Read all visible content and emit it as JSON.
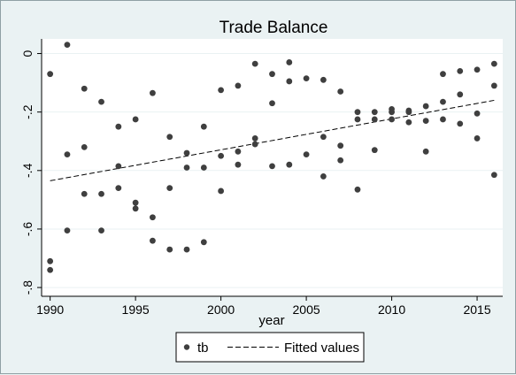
{
  "chart_data": {
    "type": "scatter",
    "title": "Trade Balance",
    "xlabel": "year",
    "ylabel": "",
    "xlim": [
      1989.5,
      2016.5
    ],
    "ylim": [
      -0.83,
      0.05
    ],
    "xticks": [
      1990,
      1995,
      2000,
      2005,
      2010,
      2015
    ],
    "yticks": [
      0,
      -0.2,
      -0.4,
      -0.6,
      -0.8
    ],
    "ytick_labels": [
      "0",
      "-.2",
      "-.4",
      "-.6",
      "-.8"
    ],
    "grid": true,
    "legend_position": "bottom",
    "colors": {
      "background": "#eaf2f3",
      "plot_bg": "#ffffff",
      "grid": "#eaf2f3",
      "marker": "#3f3f3f",
      "line": "#000000"
    },
    "series": [
      {
        "name": "tb",
        "kind": "scatter",
        "points": [
          [
            1990,
            -0.07
          ],
          [
            1990,
            -0.71
          ],
          [
            1990,
            -0.74
          ],
          [
            1991,
            0.03
          ],
          [
            1991,
            -0.345
          ],
          [
            1991,
            -0.605
          ],
          [
            1992,
            -0.12
          ],
          [
            1992,
            -0.32
          ],
          [
            1992,
            -0.48
          ],
          [
            1993,
            -0.165
          ],
          [
            1993,
            -0.48
          ],
          [
            1993,
            -0.605
          ],
          [
            1994,
            -0.25
          ],
          [
            1994,
            -0.385
          ],
          [
            1994,
            -0.46
          ],
          [
            1995,
            -0.225
          ],
          [
            1995,
            -0.51
          ],
          [
            1995,
            -0.53
          ],
          [
            1996,
            -0.135
          ],
          [
            1996,
            -0.56
          ],
          [
            1996,
            -0.64
          ],
          [
            1997,
            -0.285
          ],
          [
            1997,
            -0.46
          ],
          [
            1997,
            -0.67
          ],
          [
            1998,
            -0.34
          ],
          [
            1998,
            -0.39
          ],
          [
            1998,
            -0.67
          ],
          [
            1999,
            -0.25
          ],
          [
            1999,
            -0.39
          ],
          [
            1999,
            -0.645
          ],
          [
            2000,
            -0.125
          ],
          [
            2000,
            -0.35
          ],
          [
            2000,
            -0.47
          ],
          [
            2001,
            -0.11
          ],
          [
            2001,
            -0.335
          ],
          [
            2001,
            -0.38
          ],
          [
            2002,
            -0.035
          ],
          [
            2002,
            -0.29
          ],
          [
            2002,
            -0.31
          ],
          [
            2003,
            -0.07
          ],
          [
            2003,
            -0.17
          ],
          [
            2003,
            -0.385
          ],
          [
            2004,
            -0.03
          ],
          [
            2004,
            -0.095
          ],
          [
            2004,
            -0.38
          ],
          [
            2005,
            -0.085
          ],
          [
            2005,
            -0.345
          ],
          [
            2006,
            -0.09
          ],
          [
            2006,
            -0.285
          ],
          [
            2006,
            -0.42
          ],
          [
            2007,
            -0.13
          ],
          [
            2007,
            -0.315
          ],
          [
            2007,
            -0.365
          ],
          [
            2008,
            -0.2
          ],
          [
            2008,
            -0.225
          ],
          [
            2008,
            -0.465
          ],
          [
            2009,
            -0.2
          ],
          [
            2009,
            -0.225
          ],
          [
            2009,
            -0.33
          ],
          [
            2010,
            -0.19
          ],
          [
            2010,
            -0.2
          ],
          [
            2010,
            -0.225
          ],
          [
            2011,
            -0.195
          ],
          [
            2011,
            -0.2
          ],
          [
            2011,
            -0.235
          ],
          [
            2012,
            -0.18
          ],
          [
            2012,
            -0.23
          ],
          [
            2012,
            -0.335
          ],
          [
            2013,
            -0.07
          ],
          [
            2013,
            -0.165
          ],
          [
            2013,
            -0.225
          ],
          [
            2014,
            -0.06
          ],
          [
            2014,
            -0.14
          ],
          [
            2014,
            -0.24
          ],
          [
            2015,
            -0.055
          ],
          [
            2015,
            -0.205
          ],
          [
            2015,
            -0.29
          ],
          [
            2016,
            -0.035
          ],
          [
            2016,
            -0.11
          ],
          [
            2016,
            -0.415
          ]
        ]
      },
      {
        "name": "Fitted values",
        "kind": "line",
        "dash": "dashed",
        "points": [
          [
            1990,
            -0.435
          ],
          [
            2016,
            -0.16
          ]
        ]
      }
    ]
  }
}
